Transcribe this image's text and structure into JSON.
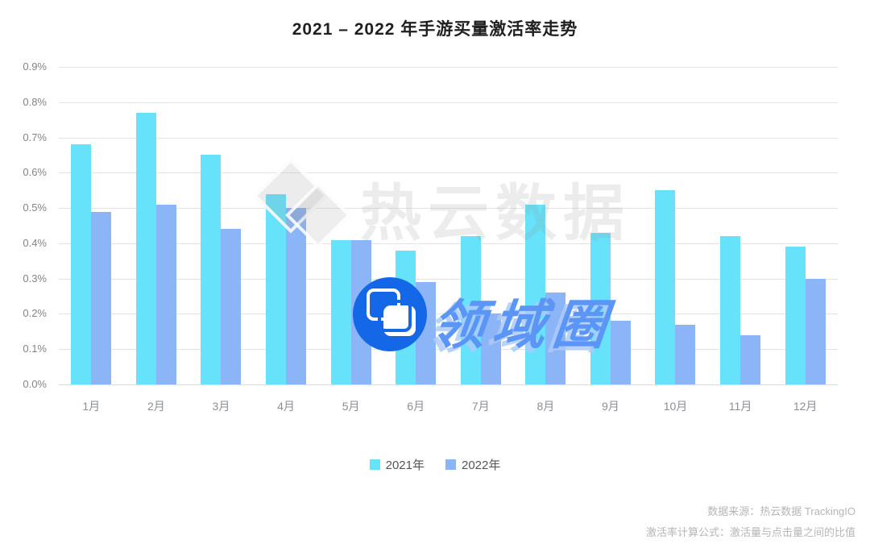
{
  "title": "2021 – 2022 年手游买量激活率走势",
  "chart_data": {
    "type": "bar",
    "title": "2021 – 2022 年手游买量激活率走势",
    "categories": [
      "1月",
      "2月",
      "3月",
      "4月",
      "5月",
      "6月",
      "7月",
      "8月",
      "9月",
      "10月",
      "11月",
      "12月"
    ],
    "series": [
      {
        "name": "2021年",
        "color": "#66e3fa",
        "values": [
          0.68,
          0.77,
          0.65,
          0.54,
          0.41,
          0.38,
          0.42,
          0.51,
          0.43,
          0.55,
          0.42,
          0.39
        ]
      },
      {
        "name": "2022年",
        "color": "#8cb5f7",
        "values": [
          0.49,
          0.51,
          0.44,
          0.5,
          0.41,
          0.29,
          0.2,
          0.26,
          0.18,
          0.17,
          0.14,
          0.3
        ]
      }
    ],
    "xlabel": "",
    "ylabel": "",
    "ylim": [
      0,
      0.9
    ],
    "yticks": [
      "0.9%",
      "0.8%",
      "0.7%",
      "0.6%",
      "0.5%",
      "0.4%",
      "0.3%",
      "0.2%",
      "0.1%",
      "0.0%"
    ],
    "value_unit": "%",
    "grid": true,
    "legend_position": "bottom"
  },
  "watermarks": {
    "background_text": "热云数据",
    "center_text": "领域圈"
  },
  "footer": {
    "source": "数据来源：热云数据 TrackingIO",
    "formula": "激活率计算公式：激活量与点击量之间的比值"
  },
  "colors": {
    "bar_2021": "#66e3fa",
    "bar_2022": "#8cb5f7",
    "gridline": "#e4e4e4",
    "axis_label": "#8a8a8a",
    "title_text": "#1f1f1f",
    "footer_text": "#b6b6b6",
    "watermark_gray": "#ececec",
    "watermark_blue_text": "#5b95f6",
    "watermark_logo_blue": "#1467e6"
  }
}
